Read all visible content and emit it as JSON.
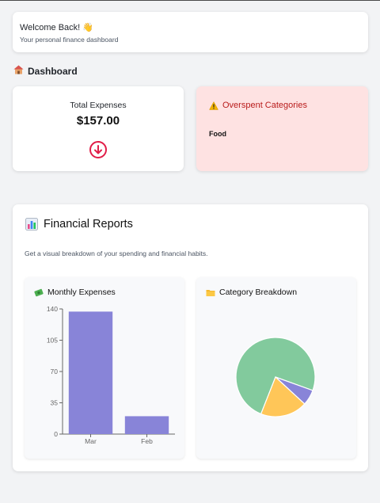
{
  "welcome": {
    "title": "Welcome Back! 👋",
    "subtitle": "Your personal finance dashboard"
  },
  "dashboard": {
    "heading": "Dashboard",
    "heading_icon": "house-icon"
  },
  "expenses_card": {
    "label": "Total Expenses",
    "value": "$157.00",
    "icon": "arrow-down-circle-icon",
    "icon_color": "#e11d48"
  },
  "overspent_card": {
    "title": "Overspent Categories",
    "title_icon": "warning-icon",
    "items": [
      "Food"
    ],
    "background": "#fee2e2",
    "title_color": "#b91c1c"
  },
  "reports": {
    "title": "Financial Reports",
    "title_icon": "bar-chart-icon",
    "subtitle": "Get a visual breakdown of your spending and financial habits."
  },
  "monthly_card": {
    "title": "Monthly Expenses",
    "title_icon": "money-icon"
  },
  "breakdown_card": {
    "title": "Category Breakdown",
    "title_icon": "folder-icon"
  },
  "chart_data": [
    {
      "type": "bar",
      "categories": [
        "Mar",
        "Feb"
      ],
      "values": [
        137,
        20
      ],
      "yticks": [
        0,
        35,
        70,
        105,
        140
      ],
      "ylim": [
        0,
        140
      ],
      "xlabel": "",
      "ylabel": "",
      "color": "#8884d8",
      "grid": false
    },
    {
      "type": "pie",
      "slices": [
        {
          "value": 117,
          "color": "#82ca9d"
        },
        {
          "value": 10,
          "color": "#8884d8"
        },
        {
          "value": 30,
          "color": "#ffc658"
        }
      ]
    }
  ]
}
